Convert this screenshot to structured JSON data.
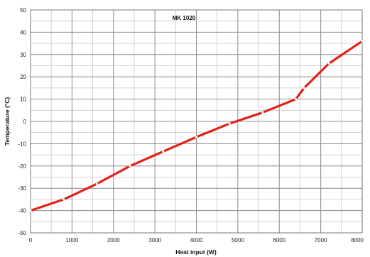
{
  "chart_data": {
    "type": "line",
    "title": "MK 1020",
    "xlabel": "Heat input (W)",
    "ylabel": "Temperature (°C)",
    "xlim": [
      0,
      8000
    ],
    "ylim": [
      -50,
      50
    ],
    "x_major_ticks": [
      0,
      1000,
      2000,
      3000,
      4000,
      5000,
      6000,
      7000,
      8000
    ],
    "y_major_ticks": [
      -50,
      -40,
      -30,
      -20,
      -10,
      0,
      10,
      20,
      30,
      40,
      50
    ],
    "x_minor_step": 500,
    "y_minor_step": 5,
    "grid": true,
    "legend": "none",
    "series": [
      {
        "color": "#e32119",
        "x": [
          0,
          800,
          1600,
          2400,
          3200,
          4000,
          4800,
          5600,
          6400,
          6600,
          7200,
          8000
        ],
        "y": [
          -40,
          -35,
          -28,
          -20,
          -13.5,
          -7,
          -1,
          4,
          10,
          15,
          26,
          36
        ]
      }
    ]
  }
}
